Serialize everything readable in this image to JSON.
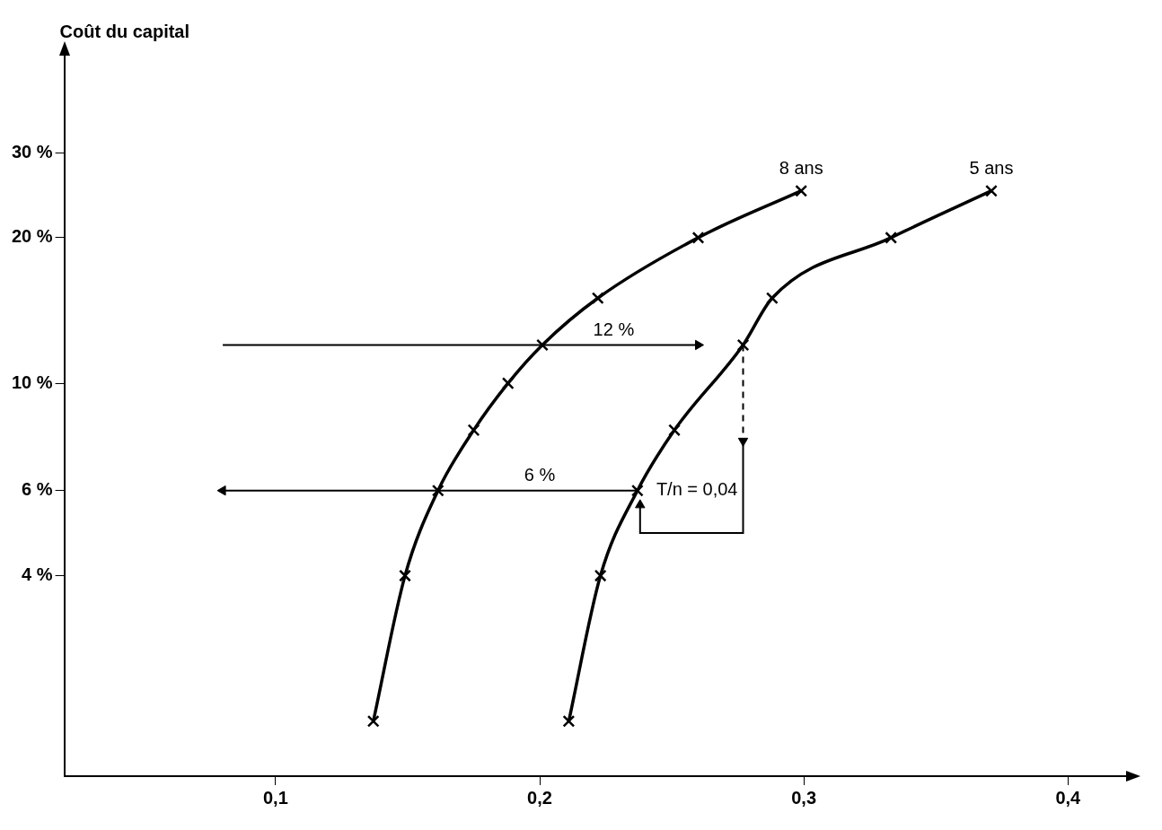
{
  "chart_data": {
    "type": "line",
    "ylabel": "Coût du capital",
    "log": "y",
    "grid": false,
    "legend": false,
    "xlim": [
      0.02,
      0.422
    ],
    "xticks": [
      {
        "value": 0.1,
        "label": "0,1"
      },
      {
        "value": 0.2,
        "label": "0,2"
      },
      {
        "value": 0.3,
        "label": "0,3"
      },
      {
        "value": 0.4,
        "label": "0,4"
      }
    ],
    "ylim": [
      1.54,
      48
    ],
    "yticks": [
      {
        "value": 4,
        "label": "4 %"
      },
      {
        "value": 6,
        "label": "6 %"
      },
      {
        "value": 10,
        "label": "10 %"
      },
      {
        "value": 20,
        "label": "20 %"
      },
      {
        "value": 30,
        "label": "30 %"
      }
    ],
    "series": [
      {
        "name": "8 ans",
        "color": "#000000",
        "marker": "cross",
        "x": [
          0.137,
          0.149,
          0.1615,
          0.175,
          0.188,
          0.201,
          0.222,
          0.26,
          0.299
        ],
        "values": [
          2,
          4,
          6,
          8,
          10,
          12,
          15,
          20,
          25
        ]
      },
      {
        "name": "5 ans",
        "color": "#000000",
        "marker": "cross",
        "x": [
          0.211,
          0.223,
          0.237,
          0.251,
          0.277,
          0.288,
          0.333,
          0.371
        ],
        "values": [
          2,
          4,
          6,
          8,
          12,
          15,
          20,
          25
        ]
      },
      {
        "type": "line",
        "color": "#000000",
        "x": [
          0.08,
          0.26
        ],
        "values": [
          12,
          12
        ]
      },
      {
        "type": "line",
        "color": "#000000",
        "x": [
          0.237,
          0.08
        ],
        "values": [
          6,
          6
        ]
      },
      {
        "type": "line",
        "color": "#000000",
        "line_style": "dashed",
        "x": [
          0.277,
          0.277
        ],
        "values": [
          12,
          7.6
        ]
      },
      {
        "type": "line",
        "color": "#000000",
        "x": [
          0.277,
          0.277,
          0.238,
          0.238
        ],
        "values": [
          7.6,
          4.9,
          4.9,
          5.6
        ]
      }
    ],
    "annotations": [
      {
        "text": "12 %",
        "x": 0.228,
        "y": 12
      },
      {
        "text": "6 %",
        "x": 0.2,
        "y": 6
      },
      {
        "text": "T/n = 0,04",
        "x": 0.277,
        "y": 6
      }
    ]
  }
}
